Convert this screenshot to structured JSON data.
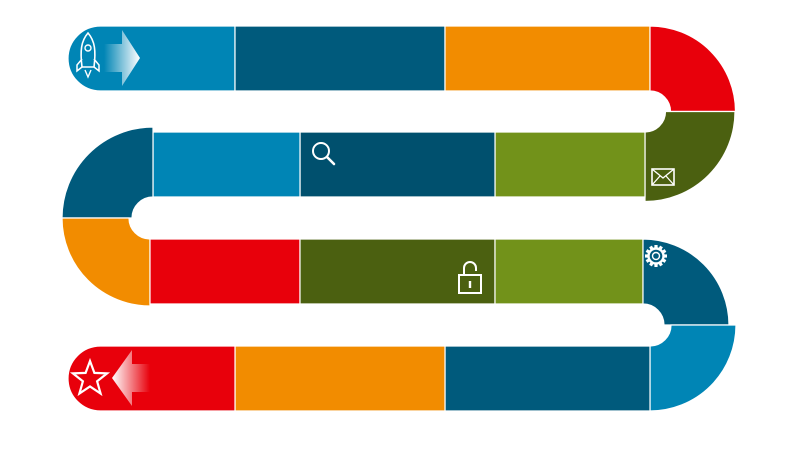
{
  "colors": {
    "blue": "#0085b5",
    "teal": "#005a7c",
    "navy": "#00506e",
    "orange": "#f28c00",
    "red": "#e8000b",
    "olive": "#72921a",
    "darkgreen": "#4b6010",
    "separator": "#ffffff",
    "icon": "#ffffff"
  },
  "road": {
    "start": {
      "icon": "rocket-icon",
      "arrow": "right",
      "color": "blue"
    },
    "end": {
      "icon": "star-icon",
      "arrow": "left",
      "color": "red"
    },
    "segments": [
      {
        "id": "seg-1",
        "color": "blue"
      },
      {
        "id": "seg-2",
        "color": "teal"
      },
      {
        "id": "seg-3",
        "color": "orange"
      },
      {
        "id": "seg-4",
        "color": "red",
        "shape": "curve"
      },
      {
        "id": "seg-5",
        "color": "darkgreen",
        "shape": "curve",
        "icon": "envelope-icon"
      },
      {
        "id": "seg-6",
        "color": "olive"
      },
      {
        "id": "seg-7",
        "color": "navy",
        "icon": "search-icon"
      },
      {
        "id": "seg-8",
        "color": "blue"
      },
      {
        "id": "seg-9",
        "color": "teal",
        "shape": "curve"
      },
      {
        "id": "seg-10",
        "color": "orange",
        "shape": "curve"
      },
      {
        "id": "seg-11",
        "color": "red"
      },
      {
        "id": "seg-12",
        "color": "darkgreen",
        "icon": "unlock-icon"
      },
      {
        "id": "seg-13",
        "color": "olive"
      },
      {
        "id": "seg-14",
        "color": "teal",
        "shape": "curve",
        "icon": "gear-icon"
      },
      {
        "id": "seg-15",
        "color": "blue",
        "shape": "curve"
      },
      {
        "id": "seg-16",
        "color": "teal"
      },
      {
        "id": "seg-17",
        "color": "orange"
      },
      {
        "id": "seg-18",
        "color": "red"
      }
    ]
  }
}
